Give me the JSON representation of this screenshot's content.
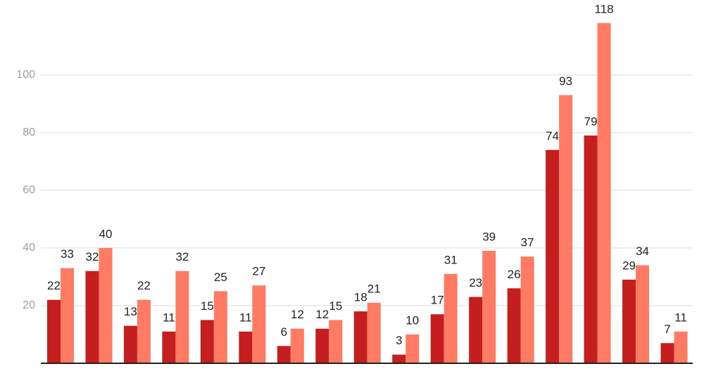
{
  "chart_data": {
    "type": "bar",
    "categories": [
      null,
      null,
      null,
      null,
      null,
      null,
      null,
      null,
      null,
      null,
      null,
      null,
      null,
      null,
      null,
      null,
      null
    ],
    "series": [
      {
        "color": "#c41e1e",
        "values": [
          22,
          32,
          13,
          11,
          15,
          11,
          6,
          12,
          18,
          3,
          17,
          23,
          26,
          74,
          79,
          29,
          7
        ]
      },
      {
        "color": "#ff7b63",
        "values": [
          33,
          40,
          22,
          32,
          25,
          27,
          12,
          15,
          21,
          10,
          31,
          39,
          37,
          93,
          118,
          34,
          11
        ]
      }
    ],
    "ylim": [
      0,
      126
    ],
    "yticks": [
      20,
      40,
      60,
      80,
      100
    ],
    "grid": true
  }
}
